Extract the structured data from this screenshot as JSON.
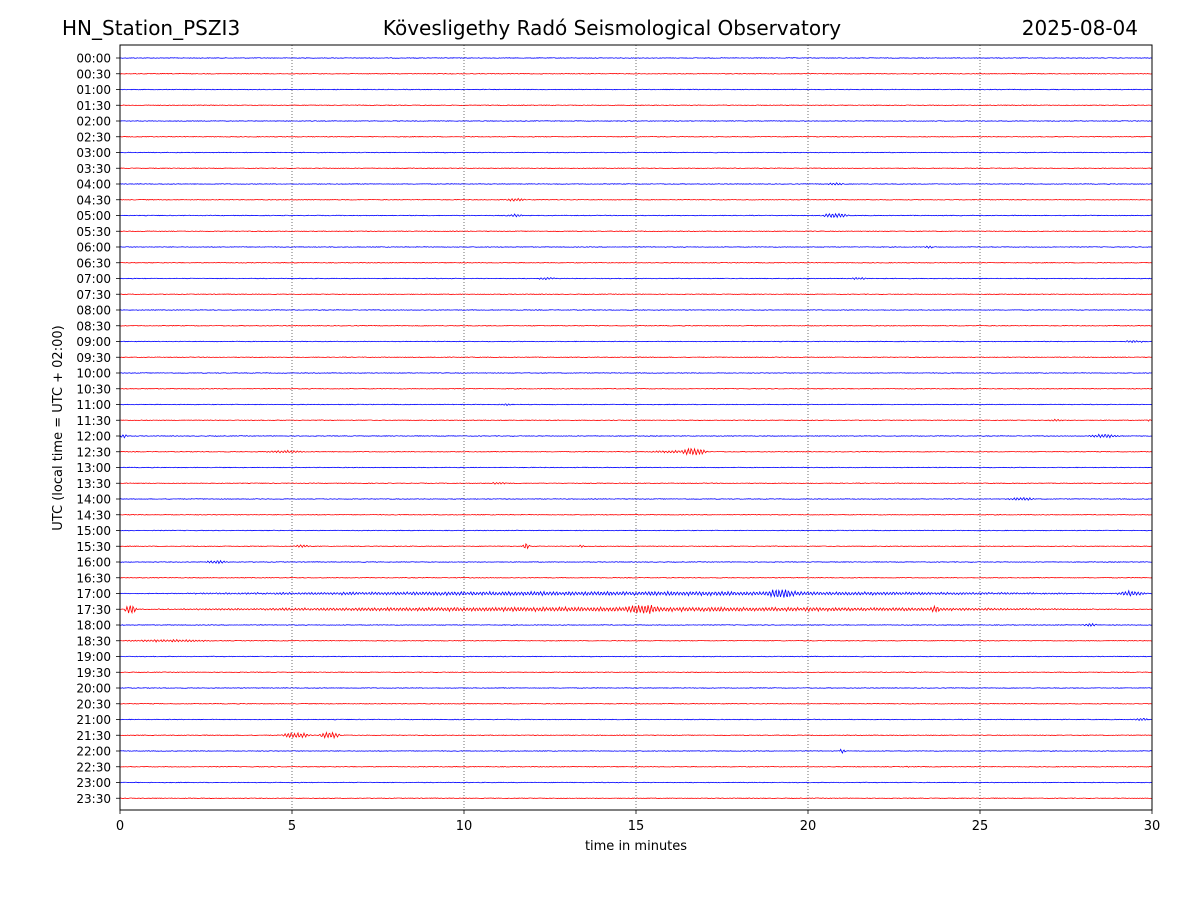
{
  "header": {
    "station": "HN_Station_PSZI3",
    "title": "Kövesligethy Radó Seismological Observatory",
    "date": "2025-08-04"
  },
  "chart_data": {
    "type": "line",
    "title": "Kövesligethy Radó Seismological Observatory",
    "xlabel": "time in minutes",
    "ylabel": "UTC (local time = UTC + 02:00)",
    "xlim": [
      0,
      30
    ],
    "x_ticks": [
      0,
      5,
      10,
      15,
      20,
      25,
      30
    ],
    "grid": "vertical dotted lines at 5, 10, 15, 20, 25 minutes",
    "colors": {
      "odd_rows": "#0000ff",
      "even_rows": "#ff0000"
    },
    "rows": [
      {
        "label": "00:00",
        "color": "#0000ff",
        "events": []
      },
      {
        "label": "00:30",
        "color": "#ff0000",
        "events": []
      },
      {
        "label": "01:00",
        "color": "#0000ff",
        "events": []
      },
      {
        "label": "01:30",
        "color": "#ff0000",
        "events": []
      },
      {
        "label": "02:00",
        "color": "#0000ff",
        "events": []
      },
      {
        "label": "02:30",
        "color": "#ff0000",
        "events": []
      },
      {
        "label": "03:00",
        "color": "#0000ff",
        "events": []
      },
      {
        "label": "03:30",
        "color": "#ff0000",
        "events": []
      },
      {
        "label": "04:00",
        "color": "#0000ff",
        "events": [
          {
            "t": 20.8,
            "amp": 1.5,
            "dur": 0.5
          }
        ]
      },
      {
        "label": "04:30",
        "color": "#ff0000",
        "events": [
          {
            "t": 11.5,
            "amp": 1.5,
            "dur": 0.8
          }
        ]
      },
      {
        "label": "05:00",
        "color": "#0000ff",
        "events": [
          {
            "t": 11.5,
            "amp": 1.5,
            "dur": 0.6
          },
          {
            "t": 20.8,
            "amp": 2.5,
            "dur": 0.9
          }
        ]
      },
      {
        "label": "05:30",
        "color": "#ff0000",
        "events": []
      },
      {
        "label": "06:00",
        "color": "#0000ff",
        "events": [
          {
            "t": 23.5,
            "amp": 1.5,
            "dur": 0.3
          }
        ]
      },
      {
        "label": "06:30",
        "color": "#ff0000",
        "events": []
      },
      {
        "label": "07:00",
        "color": "#0000ff",
        "events": [
          {
            "t": 12.4,
            "amp": 1.2,
            "dur": 0.6
          },
          {
            "t": 21.5,
            "amp": 1.2,
            "dur": 0.6
          }
        ]
      },
      {
        "label": "07:30",
        "color": "#ff0000",
        "events": []
      },
      {
        "label": "08:00",
        "color": "#0000ff",
        "events": []
      },
      {
        "label": "08:30",
        "color": "#ff0000",
        "events": []
      },
      {
        "label": "09:00",
        "color": "#0000ff",
        "events": [
          {
            "t": 29.5,
            "amp": 1.0,
            "dur": 0.8
          }
        ]
      },
      {
        "label": "09:30",
        "color": "#ff0000",
        "events": []
      },
      {
        "label": "10:00",
        "color": "#0000ff",
        "events": []
      },
      {
        "label": "10:30",
        "color": "#ff0000",
        "events": []
      },
      {
        "label": "11:00",
        "color": "#0000ff",
        "events": [
          {
            "t": 11.2,
            "amp": 1.0,
            "dur": 0.4
          }
        ]
      },
      {
        "label": "11:30",
        "color": "#ff0000",
        "events": [
          {
            "t": 27.2,
            "amp": 1.2,
            "dur": 0.5
          },
          {
            "t": 29.9,
            "amp": 1.2,
            "dur": 0.2
          }
        ]
      },
      {
        "label": "12:00",
        "color": "#0000ff",
        "events": [
          {
            "t": 0.1,
            "amp": 2.0,
            "dur": 0.3
          },
          {
            "t": 28.6,
            "amp": 2.0,
            "dur": 1.0
          }
        ]
      },
      {
        "label": "12:30",
        "color": "#ff0000",
        "events": [
          {
            "t": 4.8,
            "amp": 1.2,
            "dur": 1.5
          },
          {
            "t": 16.7,
            "amp": 4.0,
            "dur": 0.8
          },
          {
            "t": 16.0,
            "amp": 1.2,
            "dur": 1.5
          }
        ]
      },
      {
        "label": "13:00",
        "color": "#0000ff",
        "events": []
      },
      {
        "label": "13:30",
        "color": "#ff0000",
        "events": [
          {
            "t": 11.0,
            "amp": 1.2,
            "dur": 0.5
          }
        ]
      },
      {
        "label": "14:00",
        "color": "#0000ff",
        "events": [
          {
            "t": 26.2,
            "amp": 1.5,
            "dur": 1.0
          }
        ]
      },
      {
        "label": "14:30",
        "color": "#ff0000",
        "events": []
      },
      {
        "label": "15:00",
        "color": "#0000ff",
        "events": []
      },
      {
        "label": "15:30",
        "color": "#ff0000",
        "events": [
          {
            "t": 5.3,
            "amp": 1.5,
            "dur": 0.6
          },
          {
            "t": 11.8,
            "amp": 3.0,
            "dur": 0.3
          },
          {
            "t": 13.4,
            "amp": 1.5,
            "dur": 0.2
          }
        ]
      },
      {
        "label": "16:00",
        "color": "#0000ff",
        "events": [
          {
            "t": 2.8,
            "amp": 1.5,
            "dur": 0.8
          }
        ]
      },
      {
        "label": "16:30",
        "color": "#ff0000",
        "events": []
      },
      {
        "label": "17:00",
        "color": "#0000ff",
        "events": [
          {
            "t": 15.0,
            "amp": 2.0,
            "dur": 30.0
          },
          {
            "t": 19.2,
            "amp": 3.0,
            "dur": 1.0
          },
          {
            "t": 29.4,
            "amp": 2.5,
            "dur": 1.0
          }
        ]
      },
      {
        "label": "17:30",
        "color": "#ff0000",
        "events": [
          {
            "t": 15.0,
            "amp": 2.2,
            "dur": 30.0
          },
          {
            "t": 0.3,
            "amp": 5.0,
            "dur": 0.4
          },
          {
            "t": 15.2,
            "amp": 3.0,
            "dur": 1.0
          },
          {
            "t": 23.7,
            "amp": 2.5,
            "dur": 0.3
          }
        ]
      },
      {
        "label": "18:00",
        "color": "#0000ff",
        "events": [
          {
            "t": 28.2,
            "amp": 1.5,
            "dur": 0.5
          }
        ]
      },
      {
        "label": "18:30",
        "color": "#ff0000",
        "events": [
          {
            "t": 1.5,
            "amp": 1.2,
            "dur": 3.0
          }
        ]
      },
      {
        "label": "19:00",
        "color": "#0000ff",
        "events": []
      },
      {
        "label": "19:30",
        "color": "#ff0000",
        "events": []
      },
      {
        "label": "20:00",
        "color": "#0000ff",
        "events": []
      },
      {
        "label": "20:30",
        "color": "#ff0000",
        "events": []
      },
      {
        "label": "21:00",
        "color": "#0000ff",
        "events": [
          {
            "t": 29.7,
            "amp": 1.5,
            "dur": 0.5
          }
        ]
      },
      {
        "label": "21:30",
        "color": "#ff0000",
        "events": [
          {
            "t": 5.1,
            "amp": 3.0,
            "dur": 1.0
          },
          {
            "t": 6.1,
            "amp": 3.5,
            "dur": 0.7
          }
        ]
      },
      {
        "label": "22:00",
        "color": "#0000ff",
        "events": [
          {
            "t": 21.0,
            "amp": 2.5,
            "dur": 0.2
          }
        ]
      },
      {
        "label": "22:30",
        "color": "#ff0000",
        "events": [
          {
            "t": 22.9,
            "amp": 1.5,
            "dur": 0.15
          }
        ]
      },
      {
        "label": "23:00",
        "color": "#0000ff",
        "events": []
      },
      {
        "label": "23:30",
        "color": "#ff0000",
        "events": []
      }
    ]
  }
}
